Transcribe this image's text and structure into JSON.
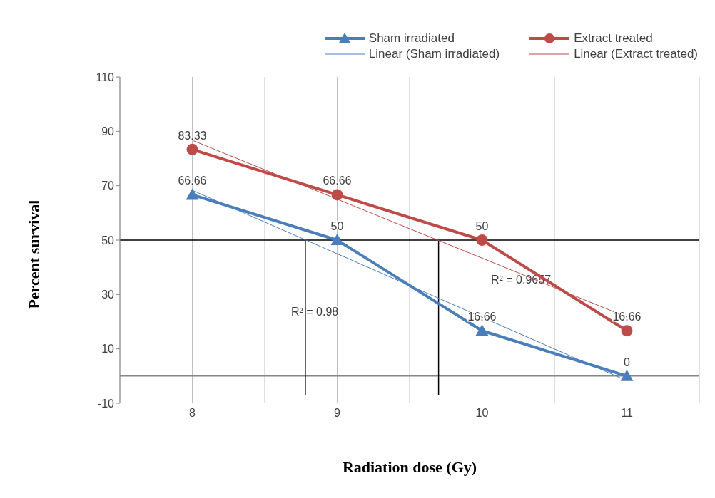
{
  "chart_data": {
    "type": "line",
    "xlabel": "Radiation dose (Gy)",
    "ylabel": "Percent survival",
    "xlim": [
      7.5,
      11.5
    ],
    "xticks": [
      {
        "value": 7.5,
        "label": null
      },
      8,
      {
        "value": 8.5,
        "label": null
      },
      9,
      {
        "value": 9.5,
        "label": null
      },
      10,
      {
        "value": 10.5,
        "label": null
      },
      11,
      {
        "value": 11.5,
        "label": null
      }
    ],
    "ylim": [
      -10,
      110
    ],
    "yticks": [
      -10,
      10,
      30,
      50,
      70,
      90,
      110
    ],
    "grid": "x",
    "legend": "top right",
    "series": [
      {
        "name": "Sham irradiated",
        "color": "#4a7ebb",
        "x": [
          8,
          9,
          10,
          11
        ],
        "values": [
          66.66,
          50,
          16.66,
          0
        ],
        "marker": "triangle",
        "value_labels": [
          "66.66",
          "50",
          "16.66",
          "0"
        ]
      },
      {
        "name": "Linear (Sham irradiated)",
        "color": "#4a7ebb",
        "x": [
          8,
          11
        ],
        "values": [
          68.3,
          -1.7
        ],
        "marker": "none"
      },
      {
        "name": "Extract treated",
        "color": "#be4b48",
        "x": [
          8,
          9,
          10,
          11
        ],
        "values": [
          83.33,
          66.66,
          50,
          16.66
        ],
        "marker": "circle",
        "value_labels": [
          "83.33",
          "66.66",
          "50",
          "16.66"
        ]
      },
      {
        "name": "Linear (Extract treated)",
        "color": "#be4b48",
        "x": [
          8,
          11
        ],
        "values": [
          86.7,
          21.7
        ],
        "marker": "none"
      }
    ],
    "ref_lines": [
      {
        "axis": "y",
        "value": 50,
        "color": "#000000"
      },
      {
        "axis": "y",
        "value": 0,
        "color": "#868686"
      },
      {
        "axis": "x",
        "value": 8.78,
        "color": "#000000"
      },
      {
        "axis": "x",
        "value": 9.7,
        "color": "#000000"
      }
    ],
    "annotations": [
      "R² = 0.98",
      "R² = 0.9657"
    ]
  }
}
